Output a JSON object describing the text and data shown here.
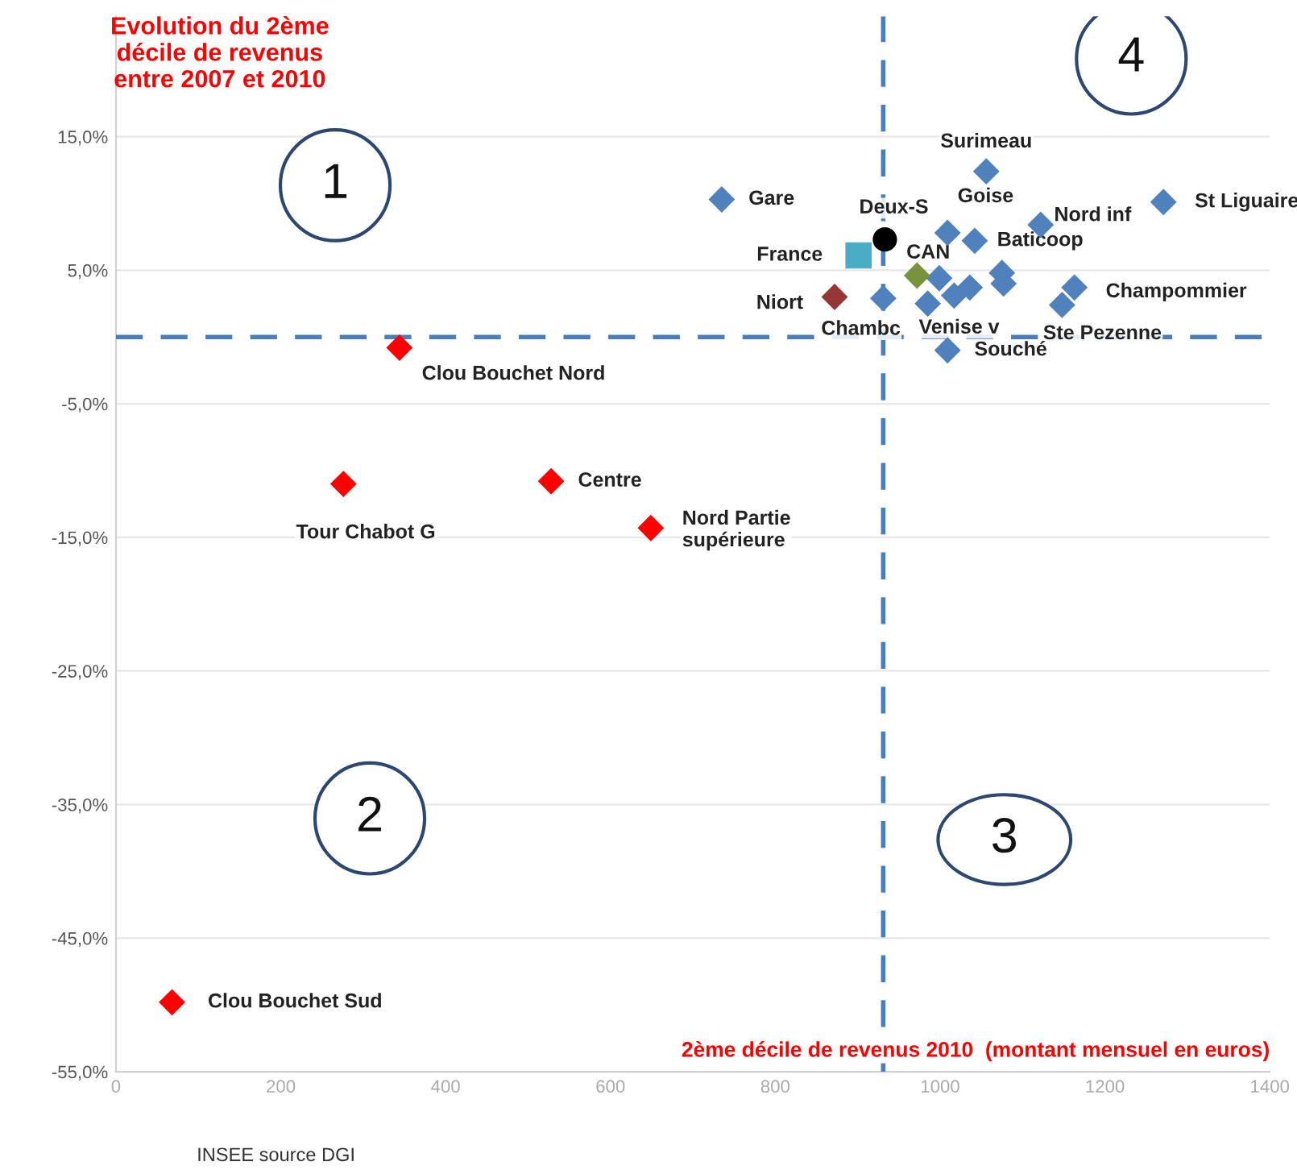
{
  "chart_data": {
    "type": "scatter",
    "ylabel": "Evolution du 2ème\ndécile de revenus\nentre 2007 et 2010",
    "xlabel": "2ème décile de revenus 2010  (montant mensuel en euros)",
    "xlim": [
      0,
      1400
    ],
    "xticks": [
      0,
      200,
      400,
      600,
      800,
      1000,
      1200,
      1400
    ],
    "ylim": [
      -55,
      24
    ],
    "yticks": [
      {
        "value": -55,
        "label": "-55,0%"
      },
      {
        "value": -45,
        "label": "-45,0%"
      },
      {
        "value": -35,
        "label": "-35,0%"
      },
      {
        "value": -25,
        "label": "-25,0%"
      },
      {
        "value": -15,
        "label": "-15,0%"
      },
      {
        "value": -5,
        "label": "-5,0%"
      },
      {
        "value": 5,
        "label": "5,0%"
      },
      {
        "value": 15,
        "label": "15,0%"
      }
    ],
    "grid": "y",
    "ref_lines": [
      {
        "axis": "y",
        "value": 0,
        "color": "#4a7ebb",
        "line_style": "dashed"
      },
      {
        "axis": "x",
        "value": 931,
        "color": "#4a7ebb",
        "line_style": "dashed"
      }
    ],
    "annotations": [
      "1",
      "2",
      "3",
      "4",
      "INSEE source DGI"
    ],
    "series": [
      {
        "color": "#4f81bd",
        "marker": "diamond",
        "x": [
          735,
          1056,
          1271,
          1122,
          1009,
          1042,
          931,
          999,
          985,
          1017,
          1036,
          1075,
          1077,
          1163,
          1148,
          1009
        ],
        "values": [
          10.3,
          12.4,
          10.1,
          8.4,
          7.8,
          7.2,
          2.9,
          4.4,
          2.5,
          3.1,
          3.7,
          4.8,
          4.0,
          3.7,
          2.4,
          -1.0
        ],
        "value_labels": [
          "Gare",
          "Surimeau",
          "St Liguaire",
          "Nord inf",
          "Goise",
          "Baticoop",
          "Chambc",
          null,
          "Venise v",
          null,
          null,
          null,
          null,
          "Champommier",
          "Ste Pezenne",
          "Souché"
        ]
      },
      {
        "color": "#ff0000",
        "marker": "diamond",
        "x": [
          344,
          276,
          528,
          649,
          68
        ],
        "values": [
          -0.8,
          -11.0,
          -10.8,
          -14.3,
          -49.8
        ],
        "value_labels": [
          "Clou Bouchet Nord",
          "Tour Chabot G",
          "Centre",
          "Nord Partie\nsupérieure",
          "Clou Bouchet Sud"
        ]
      },
      {
        "color": "#000000",
        "marker": "circle",
        "x": [
          933
        ],
        "values": [
          7.3
        ],
        "value_labels": [
          "Deux-S"
        ]
      },
      {
        "color": "#4bacc6",
        "marker": "square",
        "x": [
          901
        ],
        "values": [
          6.1
        ],
        "value_labels": [
          "France"
        ]
      },
      {
        "color": "#77933c",
        "marker": "diamond",
        "x": [
          972
        ],
        "values": [
          4.6
        ],
        "value_labels": [
          "CAN"
        ]
      },
      {
        "color": "#953735",
        "marker": "diamond",
        "x": [
          872
        ],
        "values": [
          3.0
        ],
        "value_labels": [
          "Niort"
        ]
      }
    ]
  }
}
